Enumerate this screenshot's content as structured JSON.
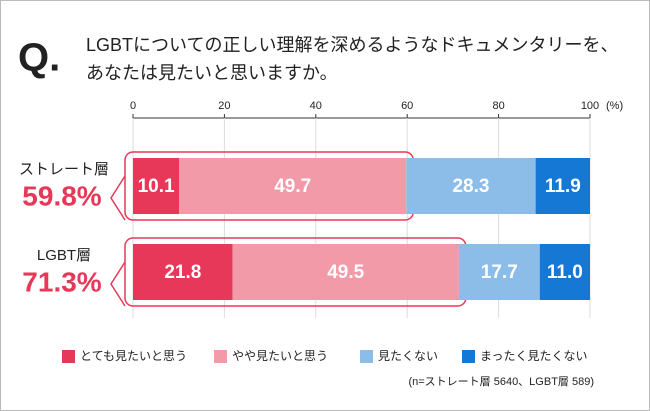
{
  "chart_data": {
    "type": "stacked-barh",
    "title_mark": "Q.",
    "title_lines": [
      "LGBTについての正しい理解を深めるようなドキュメンタリーを、",
      "あなたは見たいと思いますか。"
    ],
    "categories": [
      "ストレート層",
      "LGBT層"
    ],
    "highlights": [
      "59.8%",
      "71.3%"
    ],
    "series": [
      {
        "name": "とても見たいと思う",
        "color": "#e8385a",
        "values": [
          10.1,
          21.8
        ]
      },
      {
        "name": "やや見たいと思う",
        "color": "#f29aa8",
        "values": [
          49.7,
          49.5
        ]
      },
      {
        "name": "見たくない",
        "color": "#8cbde9",
        "values": [
          28.3,
          17.7
        ]
      },
      {
        "name": "まったく見たくない",
        "color": "#1478d4",
        "values": [
          11.9,
          11.0
        ],
        "value_labels": [
          "11.9",
          "11.0"
        ]
      }
    ],
    "xlim": [
      0,
      100
    ],
    "xticks": [
      0,
      20,
      40,
      60,
      80,
      100
    ],
    "x_unit": "(%)",
    "note": "(n=ストレート層 5640、LGBT層 589)"
  }
}
